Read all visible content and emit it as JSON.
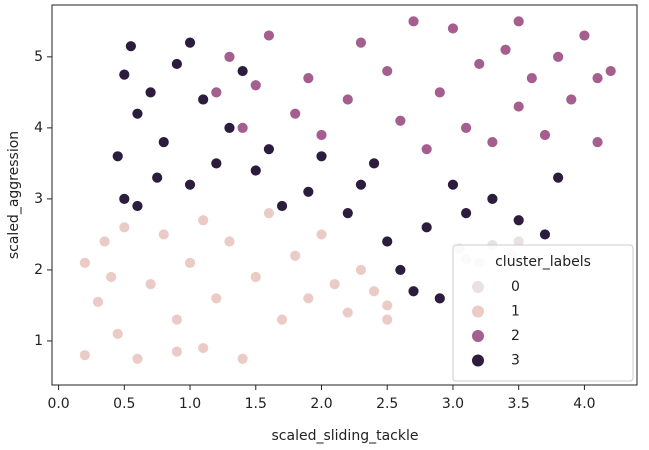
{
  "chart_data": {
    "type": "scatter",
    "x_label": "scaled_sliding_tackle",
    "y_label": "scaled_aggression",
    "legend_title": "cluster_labels",
    "legend_position": "lower right",
    "xlim": [
      -0.05,
      4.4
    ],
    "ylim": [
      0.38,
      5.73
    ],
    "xticks": [
      {
        "value": 0,
        "label": "0.0"
      },
      0.5,
      {
        "value": 1,
        "label": "1.0"
      },
      1.5,
      {
        "value": 2,
        "label": "2.0"
      },
      2.5,
      {
        "value": 3,
        "label": "3.0"
      },
      3.5,
      {
        "value": 4,
        "label": "4.0"
      }
    ],
    "yticks": [
      1,
      2,
      3,
      4,
      5
    ],
    "series": [
      {
        "name": "0",
        "color": "#e9e1e4",
        "x": [
          3.05,
          3.2,
          3.3,
          3.45,
          3.5,
          3.1
        ],
        "values": [
          2.3,
          2.1,
          2.35,
          2.2,
          2.4,
          2.15
        ]
      },
      {
        "name": "1",
        "color": "#ebcbc6",
        "x": [
          0.2,
          0.3,
          0.2,
          0.35,
          0.45,
          0.5,
          0.6,
          0.7,
          0.8,
          0.9,
          1.0,
          1.1,
          1.2,
          1.3,
          1.4,
          1.5,
          1.6,
          1.7,
          1.8,
          1.9,
          2.0,
          2.1,
          2.2,
          2.3,
          2.4,
          2.5,
          0.4,
          0.9,
          1.1,
          2.5
        ],
        "values": [
          2.1,
          1.55,
          0.8,
          2.4,
          1.1,
          2.6,
          0.75,
          1.8,
          2.5,
          1.3,
          2.1,
          0.9,
          1.6,
          2.4,
          0.75,
          1.9,
          2.8,
          1.3,
          2.2,
          1.6,
          2.5,
          1.8,
          1.4,
          2.0,
          1.7,
          1.5,
          1.9,
          0.85,
          2.7,
          1.3
        ]
      },
      {
        "name": "2",
        "color": "#a45f8e",
        "x": [
          1.3,
          1.5,
          1.6,
          1.8,
          1.9,
          2.0,
          2.2,
          2.3,
          2.5,
          2.6,
          2.7,
          2.8,
          2.9,
          3.0,
          3.1,
          3.2,
          3.3,
          3.4,
          3.5,
          3.5,
          3.6,
          3.7,
          3.8,
          3.9,
          4.0,
          4.1,
          4.2,
          4.1,
          1.4,
          1.2
        ],
        "values": [
          5.0,
          4.6,
          5.3,
          4.2,
          4.7,
          3.9,
          4.4,
          5.2,
          4.8,
          4.1,
          5.5,
          3.7,
          4.5,
          5.4,
          4.0,
          4.9,
          3.8,
          5.1,
          4.3,
          5.5,
          4.7,
          3.9,
          5.0,
          4.4,
          5.3,
          4.7,
          4.8,
          3.8,
          4.0,
          4.5
        ]
      },
      {
        "name": "3",
        "color": "#2c1d3e",
        "x": [
          0.5,
          0.55,
          0.6,
          0.45,
          0.5,
          0.7,
          0.8,
          0.9,
          1.0,
          1.1,
          1.2,
          0.6,
          1.0,
          1.3,
          1.5,
          1.7,
          1.9,
          2.0,
          2.2,
          2.4,
          2.5,
          2.6,
          2.8,
          2.9,
          3.0,
          3.1,
          3.3,
          3.5,
          3.7,
          3.8,
          2.7,
          1.4,
          0.75,
          1.6,
          2.3
        ],
        "values": [
          4.75,
          5.15,
          4.2,
          3.6,
          3.0,
          4.5,
          3.8,
          4.9,
          5.2,
          4.4,
          3.5,
          2.9,
          3.2,
          4.0,
          3.4,
          2.9,
          3.1,
          3.6,
          2.8,
          3.5,
          2.4,
          2.0,
          2.6,
          1.6,
          3.2,
          2.8,
          3.0,
          2.7,
          2.5,
          3.3,
          1.7,
          4.8,
          3.3,
          3.7,
          3.2
        ]
      }
    ]
  }
}
